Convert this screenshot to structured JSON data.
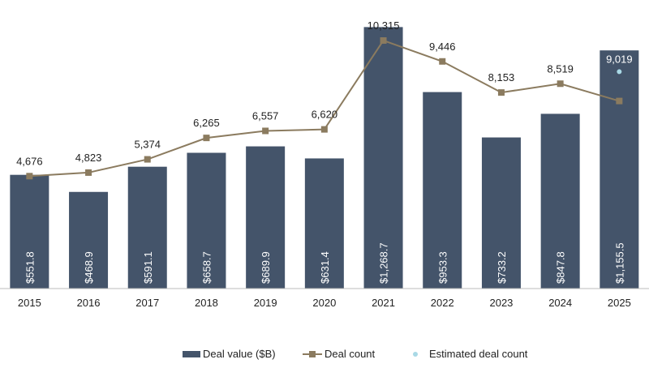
{
  "chart_data": {
    "type": "bar",
    "categories": [
      "2015",
      "2016",
      "2017",
      "2018",
      "2019",
      "2020",
      "2021",
      "2022",
      "2023",
      "2024",
      "2025"
    ],
    "series": [
      {
        "name": "Deal value ($B)",
        "type": "bar",
        "axis": "left",
        "values": [
          551.8,
          468.9,
          591.1,
          658.7,
          689.9,
          631.4,
          1268.7,
          953.3,
          733.2,
          847.8,
          1155.5
        ],
        "labels": [
          "$551.8",
          "$468.9",
          "$591.1",
          "$658.7",
          "$689.9",
          "$631.4",
          "$1,268.7",
          "$953.3",
          "$733.2",
          "$847.8",
          "$1,155.5"
        ],
        "color": "#44546a"
      },
      {
        "name": "Deal count",
        "type": "line",
        "axis": "right",
        "values": [
          4676,
          4823,
          5374,
          6265,
          6557,
          6620,
          10315,
          9446,
          8153,
          8519,
          7800
        ],
        "labels": [
          "4,676",
          "4,823",
          "5,374",
          "6,265",
          "6,557",
          "6,620",
          "10,315",
          "9,446",
          "8,153",
          "8,519",
          ""
        ],
        "color": "#8b7b5f"
      },
      {
        "name": "Estimated deal count",
        "type": "scatter",
        "axis": "right",
        "values": [
          null,
          null,
          null,
          null,
          null,
          null,
          null,
          null,
          null,
          null,
          9019
        ],
        "labels": [
          "",
          "",
          "",
          "",
          "",
          "",
          "",
          "",
          "",
          "",
          "9,019"
        ],
        "color": "#a9d9e6"
      }
    ],
    "ylim": [
      0,
      1400
    ],
    "y2lim": [
      0,
      12000
    ],
    "grid": false,
    "legend": "bottom"
  }
}
